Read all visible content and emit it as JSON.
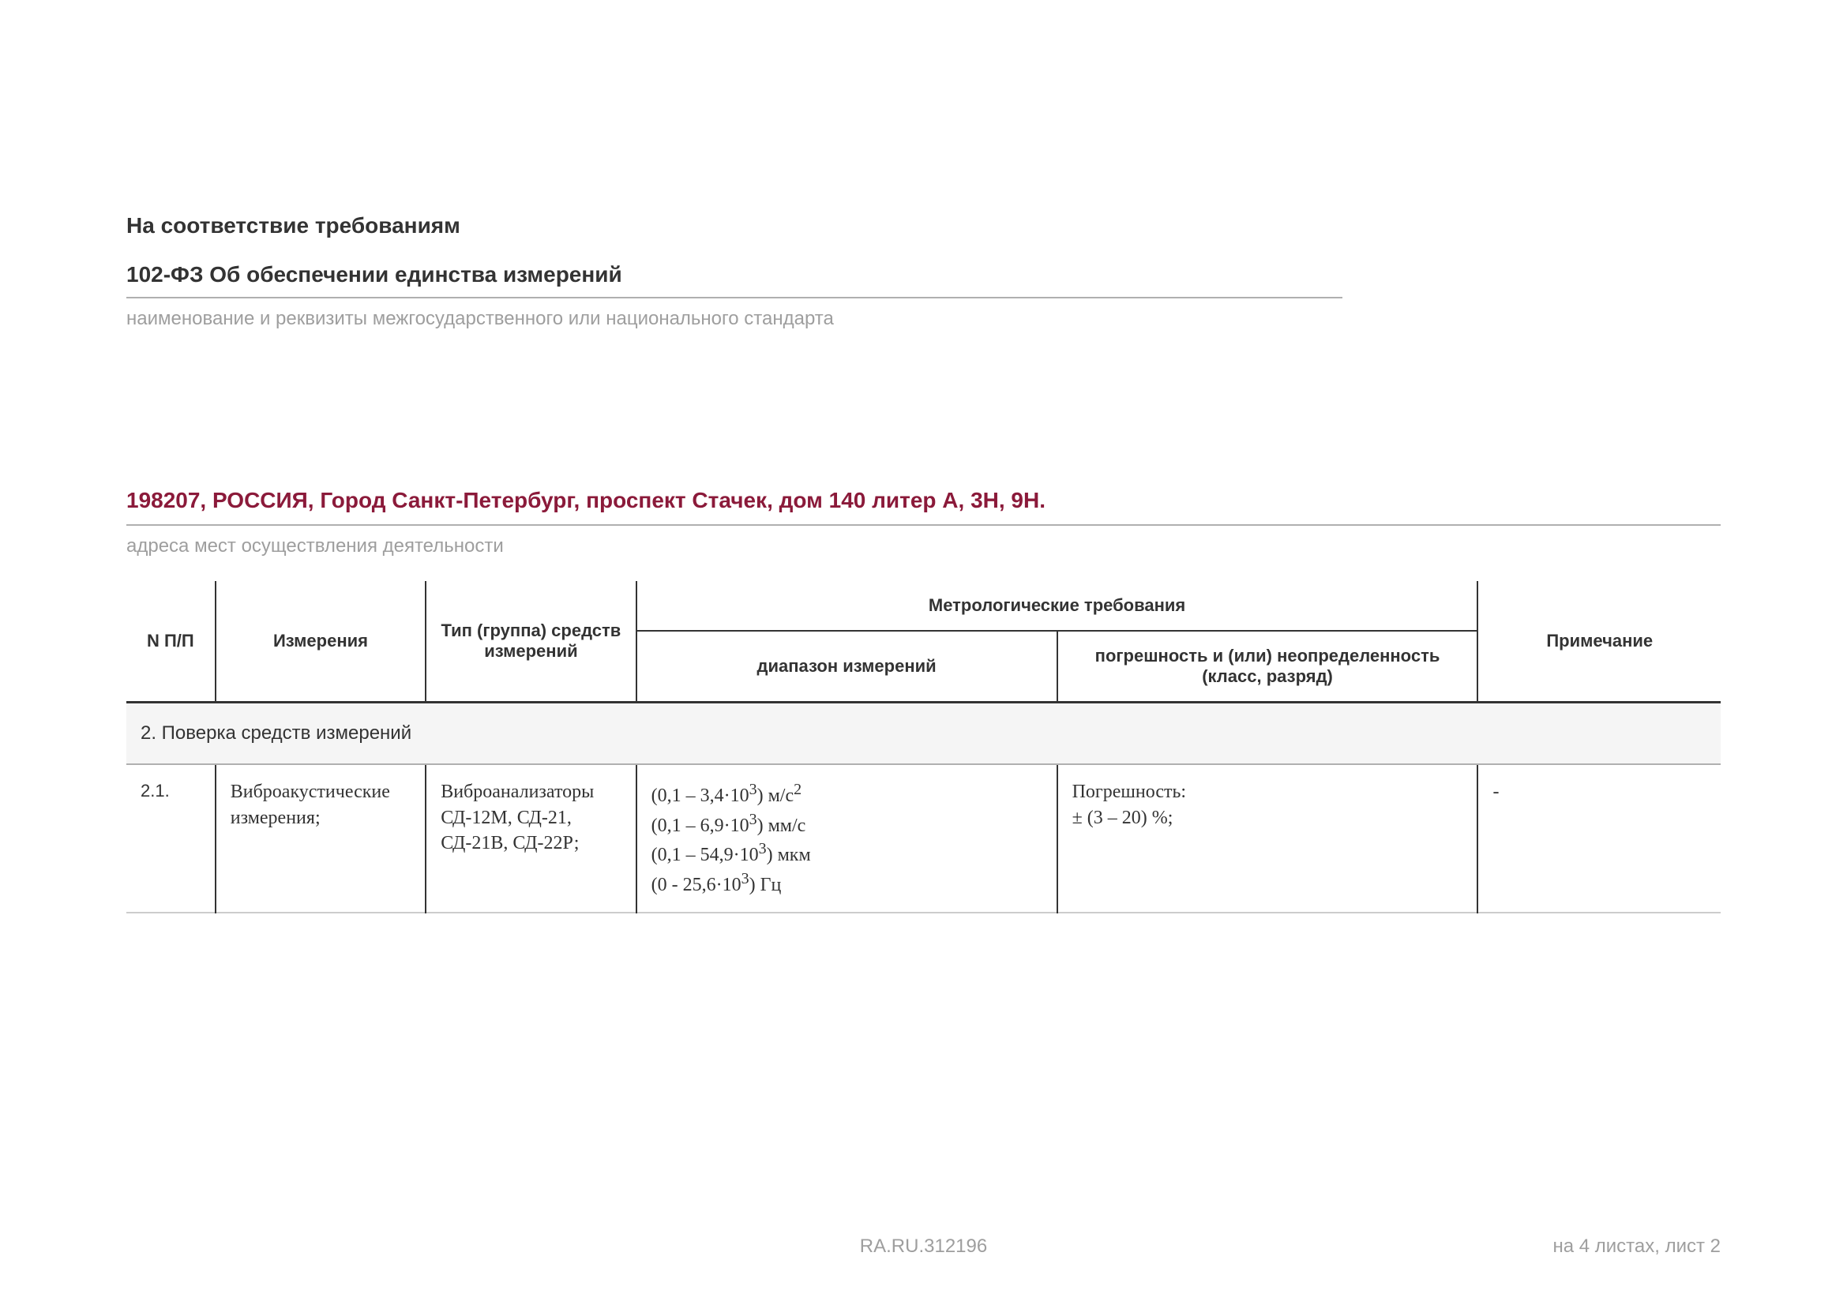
{
  "compliance": {
    "title": "На соответствие требованиям",
    "law": "102-ФЗ Об обеспечении единства измерений",
    "caption": "наименование и реквизиты межгосударственного или национального стандарта"
  },
  "address": {
    "line": "198207, РОССИЯ, Город Санкт-Петербург, проспект Стачек, дом 140  литер А, 3Н, 9Н.",
    "caption": "адреса мест осуществления деятельности",
    "color": "#8b1a3a"
  },
  "table": {
    "headers": {
      "n": "N П/П",
      "measurements": "Измерения",
      "type": "Тип (группа) средств измерений",
      "metrological": "Метрологические требования",
      "range": "диапазон измерений",
      "error": "погрешность и (или) неопределенность (класс, разряд)",
      "note": "Примечание"
    },
    "section": "2. Поверка средств измерений",
    "rows": [
      {
        "n": "2.1.",
        "measurements": "Виброакустические измерения;",
        "type": "Виброанализаторы СД-12М, СД-21, СД-21В, СД-22Р;",
        "range_html": "(0,1 – 3,4·10<sup>3</sup>) м/с<sup>2</sup><br>(0,1 – 6,9·10<sup>3</sup>) мм/с<br>(0,1 – 54,9·10<sup>3</sup>) мкм<br>(0 - 25,6·10<sup>3</sup>) Гц",
        "error": "Погрешность:\n± (3 – 20) %;",
        "note": "-"
      }
    ]
  },
  "footer": {
    "center": "RA.RU.312196",
    "right": "на 4 листах, лист 2"
  },
  "styling": {
    "background_color": "#ffffff",
    "rule_color": "#b0b0b0",
    "header_border_color": "#333333",
    "section_bg": "#f5f5f5",
    "caption_color": "#9e9e9e",
    "title_fontsize": 28,
    "caption_fontsize": 24,
    "table_header_fontsize": 22,
    "table_cell_fontsize": 24
  }
}
